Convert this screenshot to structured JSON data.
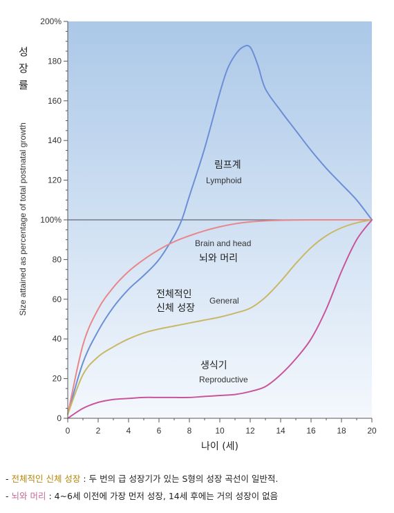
{
  "chart_data": {
    "type": "line",
    "ylabel_ko": [
      "성",
      "장",
      "률"
    ],
    "ylabel_en": "Size attained as percentage of total postnatal growth",
    "xlabel": "나이 (세)",
    "xlim": [
      0,
      20
    ],
    "ylim": [
      0,
      200
    ],
    "xticks": [
      "0",
      "2",
      "4",
      "6",
      "8",
      "10",
      "12",
      "14",
      "16",
      "18",
      "20"
    ],
    "yticks": [
      {
        "v": 0,
        "label": "0"
      },
      {
        "v": 20,
        "label": "20"
      },
      {
        "v": 40,
        "label": "40"
      },
      {
        "v": 60,
        "label": "60"
      },
      {
        "v": 80,
        "label": "80"
      },
      {
        "v": 100,
        "label": "100%"
      },
      {
        "v": 120,
        "label": "120"
      },
      {
        "v": 140,
        "label": "140"
      },
      {
        "v": 160,
        "label": "160"
      },
      {
        "v": 180,
        "label": "180"
      },
      {
        "v": 200,
        "label": "200%"
      }
    ],
    "reference_line": 100,
    "series": [
      {
        "name": "Lymphoid",
        "color": "#6b8ed6",
        "x": [
          0,
          1,
          2,
          3,
          4,
          5,
          6,
          7,
          7.5,
          8,
          9,
          10,
          10.5,
          11,
          11.5,
          12,
          12.5,
          13,
          14,
          15,
          16,
          17,
          18,
          19,
          20
        ],
        "y": [
          2,
          28,
          44,
          56,
          65,
          72,
          80,
          92,
          100,
          112,
          136,
          164,
          176,
          183,
          187,
          187,
          178,
          166,
          155,
          145,
          135,
          126,
          118,
          110,
          100
        ]
      },
      {
        "name": "Brain and head",
        "color": "#e8868a",
        "x": [
          0,
          1,
          2,
          3,
          4,
          5,
          6,
          7,
          8,
          9,
          10,
          11,
          12,
          13,
          14,
          16,
          18,
          20
        ],
        "y": [
          2,
          37,
          55,
          66,
          74,
          80,
          85,
          89,
          92,
          94.5,
          96.5,
          98,
          99,
          99.5,
          99.8,
          100,
          100,
          100
        ]
      },
      {
        "name": "General",
        "color": "#c8b866",
        "x": [
          0,
          1,
          2,
          3,
          4,
          5,
          6,
          7,
          8,
          9,
          10,
          11,
          12,
          13,
          14,
          15,
          16,
          17,
          18,
          19,
          20
        ],
        "y": [
          2,
          22,
          31,
          36,
          40,
          43,
          45,
          46.5,
          48,
          49.5,
          51,
          53,
          55.5,
          61,
          69,
          78,
          86,
          92,
          96,
          98.5,
          100
        ]
      },
      {
        "name": "Reproductive",
        "color": "#c8559a",
        "x": [
          0,
          1,
          2,
          3,
          4,
          5,
          6,
          7,
          8,
          9,
          10,
          11,
          12,
          13,
          14,
          15,
          16,
          17,
          18,
          19,
          20
        ],
        "y": [
          0,
          5,
          8,
          9.5,
          10,
          10.5,
          10.5,
          10.5,
          10.5,
          11,
          11.5,
          12,
          13.5,
          16,
          22,
          30,
          40,
          55,
          74,
          90,
          100
        ]
      }
    ],
    "annotations": [
      {
        "ko": "림프계",
        "en": "Lymphoid"
      },
      {
        "ko": "뇌와 머리",
        "en": "Brain and head"
      },
      {
        "ko": "전체적인\n신체 성장",
        "en": "General"
      },
      {
        "ko": "생식기",
        "en": "Reproductive"
      }
    ],
    "colors": {
      "bg_top": "#abc8e8",
      "bg_bottom": "#f4f8fd",
      "axis": "#555555",
      "grid": "#bfcde0",
      "ref_line": "#606575"
    }
  },
  "notes": [
    {
      "prefix": "- ",
      "highlight": "전체적인 신체 성장",
      "highlight_color": "#b8860b",
      "rest": " : 두 번의 급 성장기가 있는 S형의 성장 곡선이 일반적."
    },
    {
      "prefix": "- ",
      "highlight": "뇌와 머리",
      "highlight_color": "#c06a9a",
      "rest": " : 4~6세 이전에 가장 먼저 성장, 14세 후에는 거의 성장이 없음"
    }
  ]
}
